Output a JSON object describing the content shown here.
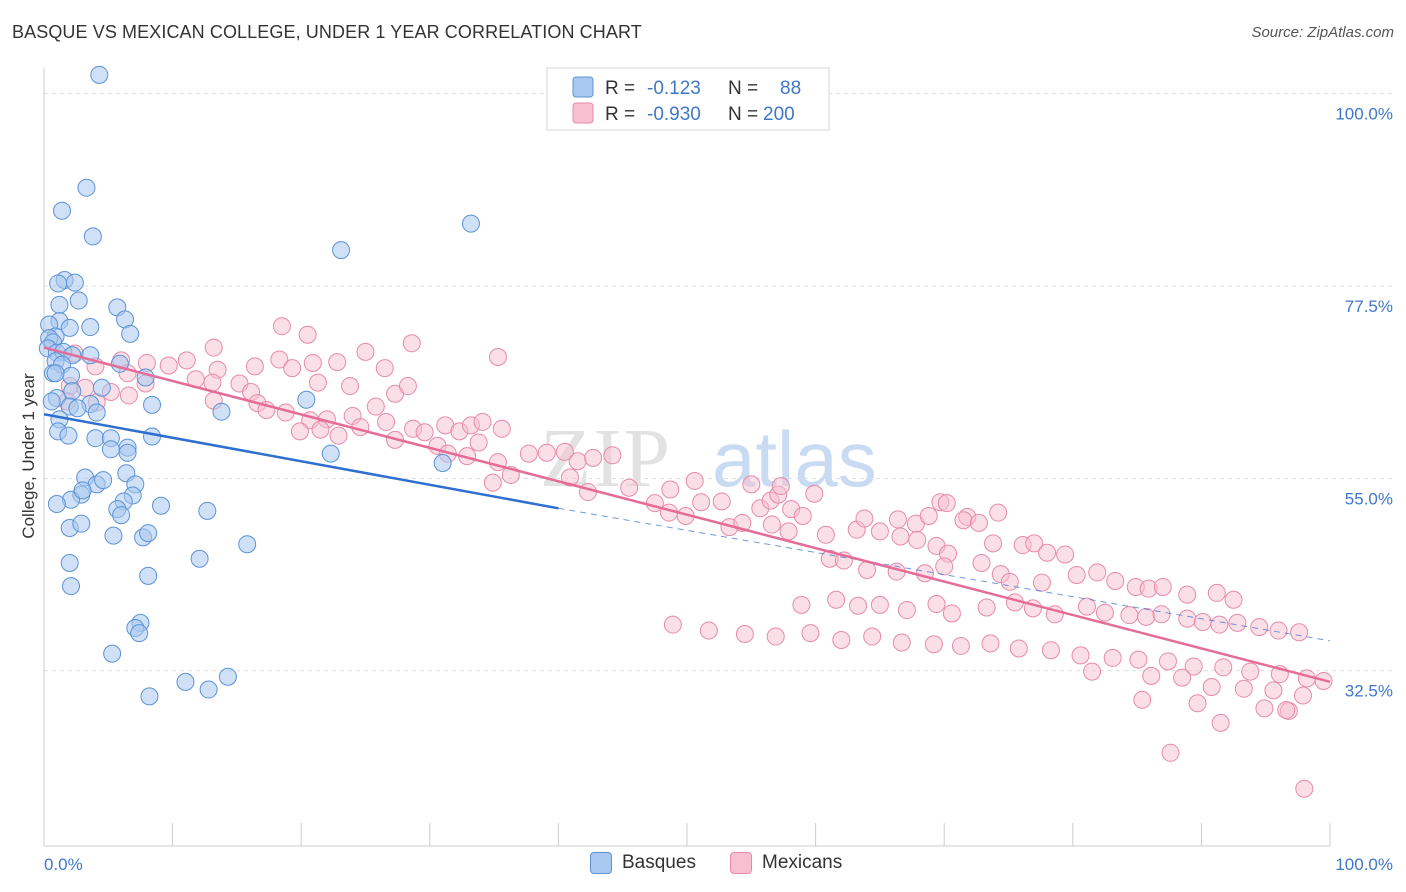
{
  "header": {
    "title": "BASQUE VS MEXICAN COLLEGE, UNDER 1 YEAR CORRELATION CHART",
    "source": "Source: ZipAtlas.com"
  },
  "watermark": {
    "bold": "ZIP",
    "light": "atlas"
  },
  "colors": {
    "basques_fill": "#a9c8f0",
    "basques_stroke": "#5b93d6",
    "basques_line": "#2f6fcf",
    "mexicans_fill": "#f7bfd0",
    "mexicans_stroke": "#e88aaa",
    "mexicans_line": "#e56c98",
    "tick_label_blue": "#3f78c8",
    "grid": "#dddddd"
  },
  "legend": {
    "rows": [
      {
        "r_label": "R =",
        "r_value": "-0.123",
        "n_label": "N =",
        "n_value": "88"
      },
      {
        "r_label": "R =",
        "r_value": "-0.930",
        "n_label": "N =",
        "n_value": "200"
      }
    ]
  },
  "bottom_legend": {
    "items": [
      "Basques",
      "Mexicans"
    ]
  },
  "chart_data": {
    "type": "scatter",
    "title": "BASQUE VS MEXICAN COLLEGE, UNDER 1 YEAR CORRELATION CHART",
    "xlabel": "",
    "ylabel": "College, Under 1 year",
    "xlim": [
      0,
      100
    ],
    "ylim": [
      12,
      103
    ],
    "x_tick_labels": [
      "0.0%",
      "100.0%"
    ],
    "y_ticks": [
      32.5,
      55.0,
      77.5,
      100.0
    ],
    "y_tick_labels": [
      "32.5%",
      "55.0%",
      "77.5%",
      "100.0%"
    ],
    "grid": true,
    "legend_position": "top-center",
    "series": [
      {
        "name": "Basques",
        "r": -0.123,
        "n": 88,
        "trend": {
          "x": [
            0,
            40
          ],
          "y": [
            62.5,
            51.5
          ]
        },
        "trend_dashed_extension": {
          "x": [
            40,
            100
          ],
          "y": [
            51.5,
            36.0
          ]
        },
        "points": [
          [
            4.3,
            102.2
          ],
          [
            3.3,
            89.0
          ],
          [
            1.4,
            86.3
          ],
          [
            3.8,
            83.3
          ],
          [
            23.1,
            81.7
          ],
          [
            33.2,
            84.8
          ],
          [
            1.6,
            78.2
          ],
          [
            1.1,
            77.8
          ],
          [
            2.4,
            77.9
          ],
          [
            2.7,
            75.8
          ],
          [
            1.2,
            75.3
          ],
          [
            5.7,
            75.0
          ],
          [
            6.3,
            73.6
          ],
          [
            1.2,
            73.4
          ],
          [
            0.4,
            73.0
          ],
          [
            3.6,
            72.7
          ],
          [
            2.0,
            72.6
          ],
          [
            0.9,
            71.6
          ],
          [
            0.4,
            71.4
          ],
          [
            0.7,
            70.9
          ],
          [
            0.3,
            70.2
          ],
          [
            6.7,
            71.9
          ],
          [
            1.0,
            69.7
          ],
          [
            1.5,
            69.8
          ],
          [
            2.2,
            69.4
          ],
          [
            3.6,
            69.4
          ],
          [
            0.9,
            68.7
          ],
          [
            1.4,
            68.3
          ],
          [
            5.9,
            68.4
          ],
          [
            0.7,
            67.3
          ],
          [
            2.1,
            67.0
          ],
          [
            0.9,
            67.3
          ],
          [
            7.9,
            66.8
          ],
          [
            4.5,
            65.6
          ],
          [
            2.2,
            65.2
          ],
          [
            1.0,
            64.4
          ],
          [
            0.6,
            64.0
          ],
          [
            20.4,
            64.2
          ],
          [
            2.0,
            63.4
          ],
          [
            1.2,
            61.9
          ],
          [
            3.6,
            63.7
          ],
          [
            8.4,
            63.6
          ],
          [
            2.6,
            63.2
          ],
          [
            4.1,
            62.7
          ],
          [
            13.8,
            62.8
          ],
          [
            1.1,
            60.5
          ],
          [
            1.9,
            60.0
          ],
          [
            4.0,
            59.7
          ],
          [
            5.2,
            59.7
          ],
          [
            6.5,
            58.6
          ],
          [
            6.5,
            58.0
          ],
          [
            8.4,
            59.9
          ],
          [
            5.2,
            58.4
          ],
          [
            3.2,
            55.1
          ],
          [
            22.3,
            57.9
          ],
          [
            6.4,
            55.6
          ],
          [
            2.9,
            53.1
          ],
          [
            4.1,
            54.3
          ],
          [
            2.1,
            52.5
          ],
          [
            31.0,
            56.8
          ],
          [
            4.6,
            54.8
          ],
          [
            7.1,
            54.3
          ],
          [
            3.0,
            53.6
          ],
          [
            6.9,
            53.0
          ],
          [
            6.2,
            52.3
          ],
          [
            5.7,
            51.4
          ],
          [
            9.1,
            51.8
          ],
          [
            6.0,
            50.7
          ],
          [
            2.0,
            49.2
          ],
          [
            2.9,
            49.7
          ],
          [
            1.0,
            52.0
          ],
          [
            12.7,
            51.2
          ],
          [
            7.7,
            48.1
          ],
          [
            8.1,
            48.6
          ],
          [
            5.4,
            48.3
          ],
          [
            2.0,
            45.1
          ],
          [
            15.8,
            47.3
          ],
          [
            2.1,
            42.4
          ],
          [
            12.1,
            45.6
          ],
          [
            8.1,
            43.6
          ],
          [
            7.5,
            38.1
          ],
          [
            7.1,
            37.5
          ],
          [
            7.4,
            36.9
          ],
          [
            5.3,
            34.5
          ],
          [
            14.3,
            31.8
          ],
          [
            11.0,
            31.2
          ],
          [
            12.8,
            30.3
          ],
          [
            8.2,
            29.5
          ]
        ]
      },
      {
        "name": "Mexicans",
        "r": -0.93,
        "n": 200,
        "trend": {
          "x": [
            0,
            100
          ],
          "y": [
            70.3,
            31.2
          ]
        },
        "points": [
          [
            2.4,
            69.6
          ],
          [
            6.0,
            68.8
          ],
          [
            13.2,
            70.3
          ],
          [
            18.5,
            72.8
          ],
          [
            20.5,
            71.8
          ],
          [
            28.6,
            70.8
          ],
          [
            35.3,
            69.2
          ],
          [
            4.0,
            68.1
          ],
          [
            8.0,
            68.5
          ],
          [
            9.7,
            68.2
          ],
          [
            11.1,
            68.8
          ],
          [
            13.5,
            67.7
          ],
          [
            16.4,
            68.1
          ],
          [
            18.3,
            68.9
          ],
          [
            19.3,
            67.9
          ],
          [
            20.9,
            68.5
          ],
          [
            22.8,
            68.6
          ],
          [
            25.0,
            69.8
          ],
          [
            26.5,
            67.9
          ],
          [
            11.8,
            66.6
          ],
          [
            6.5,
            67.3
          ],
          [
            13.1,
            66.2
          ],
          [
            15.2,
            66.1
          ],
          [
            16.1,
            65.1
          ],
          [
            21.3,
            66.2
          ],
          [
            23.8,
            65.8
          ],
          [
            27.3,
            64.9
          ],
          [
            28.3,
            65.8
          ],
          [
            5.2,
            65.1
          ],
          [
            6.6,
            64.7
          ],
          [
            3.2,
            65.6
          ],
          [
            2.0,
            65.8
          ],
          [
            7.9,
            66.1
          ],
          [
            1.8,
            64.0
          ],
          [
            4.1,
            63.9
          ],
          [
            13.2,
            64.1
          ],
          [
            16.6,
            63.8
          ],
          [
            17.3,
            63.0
          ],
          [
            18.8,
            62.7
          ],
          [
            20.7,
            61.8
          ],
          [
            22.0,
            61.9
          ],
          [
            24.0,
            62.3
          ],
          [
            25.8,
            63.4
          ],
          [
            26.6,
            61.6
          ],
          [
            19.9,
            60.5
          ],
          [
            21.5,
            60.7
          ],
          [
            22.9,
            60.0
          ],
          [
            24.6,
            61.0
          ],
          [
            27.3,
            59.5
          ],
          [
            28.7,
            60.8
          ],
          [
            29.6,
            60.4
          ],
          [
            31.2,
            61.2
          ],
          [
            32.3,
            60.5
          ],
          [
            33.2,
            61.2
          ],
          [
            34.1,
            61.6
          ],
          [
            35.6,
            60.8
          ],
          [
            33.8,
            59.2
          ],
          [
            30.6,
            58.8
          ],
          [
            31.4,
            57.9
          ],
          [
            32.9,
            57.6
          ],
          [
            35.3,
            56.9
          ],
          [
            36.3,
            55.4
          ],
          [
            34.9,
            54.5
          ],
          [
            37.7,
            57.9
          ],
          [
            39.1,
            58.0
          ],
          [
            40.5,
            58.1
          ],
          [
            41.5,
            57.0
          ],
          [
            42.7,
            57.4
          ],
          [
            44.2,
            57.7
          ],
          [
            40.9,
            55.1
          ],
          [
            42.3,
            53.4
          ],
          [
            45.5,
            53.9
          ],
          [
            48.7,
            53.7
          ],
          [
            50.6,
            54.7
          ],
          [
            51.1,
            52.2
          ],
          [
            48.6,
            51.0
          ],
          [
            49.9,
            50.6
          ],
          [
            47.5,
            52.1
          ],
          [
            52.7,
            52.3
          ],
          [
            55.0,
            54.3
          ],
          [
            55.7,
            51.5
          ],
          [
            56.5,
            52.4
          ],
          [
            57.1,
            53.1
          ],
          [
            57.3,
            54.1
          ],
          [
            58.1,
            51.4
          ],
          [
            59.0,
            50.6
          ],
          [
            59.9,
            53.2
          ],
          [
            53.3,
            49.3
          ],
          [
            54.3,
            49.8
          ],
          [
            56.6,
            49.6
          ],
          [
            57.9,
            48.8
          ],
          [
            60.8,
            48.4
          ],
          [
            63.2,
            49.0
          ],
          [
            63.8,
            50.3
          ],
          [
            65.0,
            48.8
          ],
          [
            66.4,
            50.2
          ],
          [
            67.8,
            49.7
          ],
          [
            68.8,
            50.6
          ],
          [
            69.7,
            52.2
          ],
          [
            70.2,
            52.1
          ],
          [
            71.8,
            50.5
          ],
          [
            71.5,
            50.1
          ],
          [
            72.7,
            49.8
          ],
          [
            74.2,
            51.0
          ],
          [
            66.6,
            48.2
          ],
          [
            67.9,
            47.8
          ],
          [
            69.4,
            47.1
          ],
          [
            70.3,
            46.2
          ],
          [
            73.8,
            47.4
          ],
          [
            76.1,
            47.2
          ],
          [
            77.0,
            47.4
          ],
          [
            78.0,
            46.3
          ],
          [
            79.4,
            46.1
          ],
          [
            61.1,
            45.6
          ],
          [
            62.2,
            45.4
          ],
          [
            64.0,
            44.3
          ],
          [
            66.3,
            44.1
          ],
          [
            68.5,
            43.9
          ],
          [
            70.0,
            44.7
          ],
          [
            72.9,
            45.1
          ],
          [
            74.4,
            43.8
          ],
          [
            75.1,
            42.9
          ],
          [
            77.6,
            42.8
          ],
          [
            80.3,
            43.7
          ],
          [
            81.9,
            44.0
          ],
          [
            83.3,
            43.0
          ],
          [
            84.9,
            42.3
          ],
          [
            85.9,
            42.1
          ],
          [
            87.0,
            42.3
          ],
          [
            88.9,
            41.4
          ],
          [
            91.2,
            41.6
          ],
          [
            92.5,
            40.8
          ],
          [
            58.9,
            40.2
          ],
          [
            61.6,
            40.8
          ],
          [
            63.3,
            40.1
          ],
          [
            65.0,
            40.2
          ],
          [
            67.1,
            39.6
          ],
          [
            69.4,
            40.3
          ],
          [
            70.6,
            39.2
          ],
          [
            73.3,
            39.9
          ],
          [
            75.5,
            40.5
          ],
          [
            76.9,
            39.8
          ],
          [
            78.6,
            39.1
          ],
          [
            81.1,
            40.0
          ],
          [
            82.5,
            39.3
          ],
          [
            84.4,
            39.0
          ],
          [
            85.7,
            38.8
          ],
          [
            86.9,
            39.1
          ],
          [
            88.9,
            38.6
          ],
          [
            90.1,
            38.2
          ],
          [
            91.4,
            37.9
          ],
          [
            92.8,
            38.1
          ],
          [
            94.5,
            37.6
          ],
          [
            96.0,
            37.2
          ],
          [
            97.6,
            37.0
          ],
          [
            48.9,
            37.9
          ],
          [
            51.7,
            37.2
          ],
          [
            54.5,
            36.8
          ],
          [
            56.9,
            36.5
          ],
          [
            59.6,
            36.9
          ],
          [
            62.0,
            36.1
          ],
          [
            64.4,
            36.5
          ],
          [
            66.7,
            35.8
          ],
          [
            69.2,
            35.6
          ],
          [
            71.3,
            35.4
          ],
          [
            73.6,
            35.7
          ],
          [
            75.8,
            35.1
          ],
          [
            78.3,
            34.9
          ],
          [
            80.6,
            34.3
          ],
          [
            83.1,
            34.0
          ],
          [
            85.1,
            33.8
          ],
          [
            87.4,
            33.6
          ],
          [
            89.4,
            33.0
          ],
          [
            91.7,
            32.9
          ],
          [
            93.8,
            32.4
          ],
          [
            96.1,
            32.1
          ],
          [
            98.2,
            31.6
          ],
          [
            81.5,
            32.4
          ],
          [
            86.1,
            31.9
          ],
          [
            88.5,
            31.7
          ],
          [
            90.8,
            30.6
          ],
          [
            93.3,
            30.4
          ],
          [
            95.6,
            30.2
          ],
          [
            97.9,
            29.6
          ],
          [
            85.4,
            29.1
          ],
          [
            89.7,
            28.7
          ],
          [
            94.9,
            28.1
          ],
          [
            96.8,
            27.8
          ],
          [
            91.5,
            26.4
          ],
          [
            87.6,
            22.9
          ],
          [
            98.0,
            18.7
          ],
          [
            96.6,
            27.9
          ],
          [
            99.5,
            31.3
          ]
        ]
      }
    ]
  }
}
